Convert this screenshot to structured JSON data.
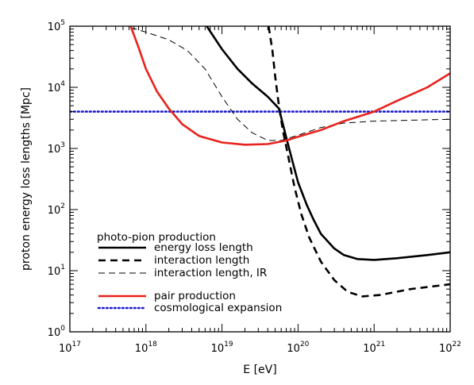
{
  "chart_data": {
    "type": "line",
    "title": "",
    "xlabel": "E [eV]",
    "ylabel": "proton energy loss lengths [Mpc]",
    "xscale": "log",
    "yscale": "log",
    "xlim": [
      1e+17,
      1e+22
    ],
    "ylim": [
      1,
      100000
    ],
    "x_ticks": [
      {
        "base": "10",
        "exp": "17",
        "value": 1e+17
      },
      {
        "base": "10",
        "exp": "18",
        "value": 1e+18
      },
      {
        "base": "10",
        "exp": "19",
        "value": 1e+19
      },
      {
        "base": "10",
        "exp": "20",
        "value": 1e+20
      },
      {
        "base": "10",
        "exp": "21",
        "value": 1e+21
      },
      {
        "base": "10",
        "exp": "22",
        "value": 1e+22
      }
    ],
    "y_ticks": [
      {
        "base": "10",
        "exp": "0",
        "value": 1
      },
      {
        "base": "10",
        "exp": "1",
        "value": 10
      },
      {
        "base": "10",
        "exp": "2",
        "value": 100
      },
      {
        "base": "10",
        "exp": "3",
        "value": 1000
      },
      {
        "base": "10",
        "exp": "4",
        "value": 10000
      },
      {
        "base": "10",
        "exp": "5",
        "value": 100000
      }
    ],
    "legend_heading": "photo-pion production",
    "legend_position": "bottom-left",
    "series": [
      {
        "name": "energy loss length",
        "color": "#000000",
        "style": "solid",
        "width": 2.6,
        "points": [
          [
            6.3e+18,
            100000
          ],
          [
            1e+19,
            42000
          ],
          [
            1.6e+19,
            20000
          ],
          [
            2.5e+19,
            11500
          ],
          [
            4e+19,
            7000
          ],
          [
            5.6e+19,
            4500
          ],
          [
            7e+19,
            1500
          ],
          [
            8.5e+19,
            600
          ],
          [
            1e+20,
            280
          ],
          [
            1.3e+20,
            120
          ],
          [
            1.6e+20,
            68
          ],
          [
            2e+20,
            40
          ],
          [
            3e+20,
            23
          ],
          [
            4e+20,
            18
          ],
          [
            6e+20,
            15.5
          ],
          [
            1e+21,
            15
          ],
          [
            2e+21,
            16
          ],
          [
            5e+21,
            18
          ],
          [
            1e+22,
            20
          ]
        ]
      },
      {
        "name": "interaction length",
        "color": "#000000",
        "style": "dashed",
        "width": 2.6,
        "points": [
          [
            4.1e+19,
            100000
          ],
          [
            4.6e+19,
            40000
          ],
          [
            5e+19,
            15000
          ],
          [
            5.6e+19,
            5000
          ],
          [
            6.3e+19,
            2000
          ],
          [
            7.5e+19,
            700
          ],
          [
            9e+19,
            230
          ],
          [
            1.1e+20,
            85
          ],
          [
            1.4e+20,
            35
          ],
          [
            2e+20,
            14
          ],
          [
            3e+20,
            7
          ],
          [
            4.5e+20,
            4.5
          ],
          [
            7e+20,
            3.8
          ],
          [
            1.2e+21,
            4
          ],
          [
            3e+21,
            5
          ],
          [
            1e+22,
            6
          ]
        ]
      },
      {
        "name": "interaction length, IR",
        "color": "#000000",
        "style": "thin-dashed",
        "width": 1,
        "points": [
          [
            6.3e+17,
            95000
          ],
          [
            1e+18,
            80000
          ],
          [
            2e+18,
            60000
          ],
          [
            3.5e+18,
            40000
          ],
          [
            6e+18,
            20000
          ],
          [
            1e+19,
            7000
          ],
          [
            1.6e+19,
            3000
          ],
          [
            2.5e+19,
            1800
          ],
          [
            4e+19,
            1350
          ],
          [
            6e+19,
            1350
          ],
          [
            1e+20,
            1650
          ],
          [
            2e+20,
            2200
          ],
          [
            4e+20,
            2600
          ],
          [
            1e+21,
            2800
          ],
          [
            3e+21,
            2900
          ],
          [
            1e+22,
            3000
          ]
        ]
      },
      {
        "name": "pair production",
        "color": "#e8221c",
        "style": "solid",
        "width": 2.6,
        "points": [
          [
            6.3e+17,
            100000
          ],
          [
            8e+17,
            45000
          ],
          [
            1e+18,
            20000
          ],
          [
            1.4e+18,
            8500
          ],
          [
            2e+18,
            4500
          ],
          [
            3e+18,
            2500
          ],
          [
            5e+18,
            1600
          ],
          [
            1e+19,
            1250
          ],
          [
            2e+19,
            1150
          ],
          [
            4e+19,
            1180
          ],
          [
            7e+19,
            1350
          ],
          [
            1e+20,
            1550
          ],
          [
            2e+20,
            2000
          ],
          [
            4e+20,
            2800
          ],
          [
            1e+21,
            4000
          ],
          [
            2e+21,
            6000
          ],
          [
            5e+21,
            10000
          ],
          [
            1e+22,
            17000
          ]
        ]
      },
      {
        "name": "cosmological expansion",
        "color": "#1a1acc",
        "style": "dotted",
        "width": 2.6,
        "points": [
          [
            1e+17,
            4000
          ],
          [
            1e+22,
            4000
          ]
        ]
      }
    ]
  }
}
